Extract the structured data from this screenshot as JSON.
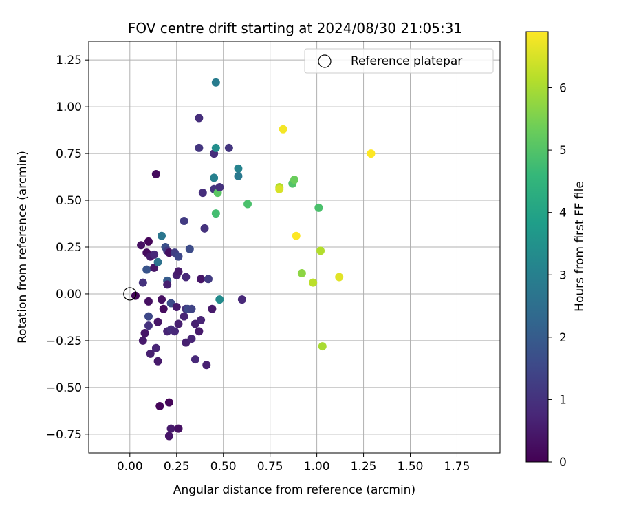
{
  "chart_data": {
    "type": "scatter",
    "title": "FOV centre drift starting at 2024/08/30 21:05:31",
    "xlabel": "Angular distance from reference (arcmin)",
    "ylabel": "Rotation from reference (arcmin)",
    "xlim": [
      -0.22,
      1.98
    ],
    "ylim": [
      -0.85,
      1.35
    ],
    "xticks": [
      "0.00",
      "0.25",
      "0.50",
      "0.75",
      "1.00",
      "1.25",
      "1.50",
      "1.75"
    ],
    "xtick_values": [
      0,
      0.25,
      0.5,
      0.75,
      1.0,
      1.25,
      1.5,
      1.75
    ],
    "yticks": [
      "−0.75",
      "−0.50",
      "−0.25",
      "0.00",
      "0.25",
      "0.50",
      "0.75",
      "1.00",
      "1.25"
    ],
    "ytick_values": [
      -0.75,
      -0.5,
      -0.25,
      0,
      0.25,
      0.5,
      0.75,
      1.0,
      1.25
    ],
    "grid": true,
    "legend": {
      "position": "top-right",
      "entries": [
        "Reference platepar"
      ]
    },
    "reference_point": {
      "x": 0,
      "y": 0
    },
    "colorbar": {
      "label": "Hours from first FF file",
      "range": [
        0,
        6.9
      ],
      "ticks": [
        "0",
        "1",
        "2",
        "3",
        "4",
        "5",
        "6"
      ],
      "tick_values": [
        0,
        1,
        2,
        3,
        4,
        5,
        6
      ],
      "colormap": "viridis",
      "stops": [
        "#440154",
        "#482878",
        "#3e4989",
        "#31688e",
        "#26828e",
        "#1f9e89",
        "#35b779",
        "#6ece58",
        "#b5de2b",
        "#fde725"
      ]
    },
    "points": [
      {
        "x": 0.03,
        "y": -0.01,
        "t": 0.1
      },
      {
        "x": 0.06,
        "y": 0.26,
        "t": 0.3
      },
      {
        "x": 0.07,
        "y": 0.06,
        "t": 1.0
      },
      {
        "x": 0.07,
        "y": -0.25,
        "t": 0.5
      },
      {
        "x": 0.08,
        "y": -0.21,
        "t": 0.4
      },
      {
        "x": 0.09,
        "y": 0.22,
        "t": 0.2
      },
      {
        "x": 0.09,
        "y": 0.13,
        "t": 1.8
      },
      {
        "x": 0.1,
        "y": 0.28,
        "t": 0.1
      },
      {
        "x": 0.1,
        "y": -0.12,
        "t": 1.5
      },
      {
        "x": 0.1,
        "y": -0.17,
        "t": 1.0
      },
      {
        "x": 0.1,
        "y": -0.04,
        "t": 0.3
      },
      {
        "x": 0.11,
        "y": 0.2,
        "t": 0.5
      },
      {
        "x": 0.11,
        "y": -0.32,
        "t": 0.6
      },
      {
        "x": 0.13,
        "y": 0.21,
        "t": 0.8
      },
      {
        "x": 0.13,
        "y": 0.14,
        "t": 0.4
      },
      {
        "x": 0.14,
        "y": 0.64,
        "t": 0.2
      },
      {
        "x": 0.14,
        "y": -0.29,
        "t": 0.7
      },
      {
        "x": 0.15,
        "y": -0.15,
        "t": 0.4
      },
      {
        "x": 0.15,
        "y": -0.36,
        "t": 0.5
      },
      {
        "x": 0.15,
        "y": 0.17,
        "t": 2.6
      },
      {
        "x": 0.16,
        "y": -0.6,
        "t": 0.1
      },
      {
        "x": 0.17,
        "y": -0.03,
        "t": 0.3
      },
      {
        "x": 0.17,
        "y": 0.31,
        "t": 2.7
      },
      {
        "x": 0.18,
        "y": -0.08,
        "t": 0.2
      },
      {
        "x": 0.19,
        "y": 0.25,
        "t": 1.7
      },
      {
        "x": 0.2,
        "y": 0.23,
        "t": 1.2
      },
      {
        "x": 0.2,
        "y": 0.07,
        "t": 2.0
      },
      {
        "x": 0.2,
        "y": 0.05,
        "t": 0.6
      },
      {
        "x": 0.2,
        "y": -0.2,
        "t": 0.7
      },
      {
        "x": 0.21,
        "y": 0.22,
        "t": 0.3
      },
      {
        "x": 0.21,
        "y": -0.76,
        "t": 0.4
      },
      {
        "x": 0.21,
        "y": -0.58,
        "t": 0.1
      },
      {
        "x": 0.22,
        "y": -0.05,
        "t": 1.6
      },
      {
        "x": 0.22,
        "y": -0.19,
        "t": 0.9
      },
      {
        "x": 0.22,
        "y": -0.72,
        "t": 0.5
      },
      {
        "x": 0.24,
        "y": -0.2,
        "t": 0.8
      },
      {
        "x": 0.24,
        "y": 0.22,
        "t": 1.3
      },
      {
        "x": 0.25,
        "y": -0.07,
        "t": 0.5
      },
      {
        "x": 0.25,
        "y": 0.1,
        "t": 0.6
      },
      {
        "x": 0.26,
        "y": -0.72,
        "t": 0.3
      },
      {
        "x": 0.26,
        "y": -0.16,
        "t": 0.6
      },
      {
        "x": 0.26,
        "y": 0.12,
        "t": 0.5
      },
      {
        "x": 0.26,
        "y": 0.2,
        "t": 1.5
      },
      {
        "x": 0.29,
        "y": 0.39,
        "t": 1.2
      },
      {
        "x": 0.29,
        "y": -0.12,
        "t": 0.7
      },
      {
        "x": 0.3,
        "y": -0.08,
        "t": 1.0
      },
      {
        "x": 0.3,
        "y": 0.09,
        "t": 0.8
      },
      {
        "x": 0.3,
        "y": -0.26,
        "t": 0.6
      },
      {
        "x": 0.31,
        "y": -0.08,
        "t": 1.5
      },
      {
        "x": 0.32,
        "y": 0.24,
        "t": 1.6
      },
      {
        "x": 0.33,
        "y": -0.08,
        "t": 1.4
      },
      {
        "x": 0.33,
        "y": -0.24,
        "t": 0.7
      },
      {
        "x": 0.35,
        "y": -0.35,
        "t": 0.8
      },
      {
        "x": 0.35,
        "y": -0.16,
        "t": 0.6
      },
      {
        "x": 0.37,
        "y": -0.2,
        "t": 0.5
      },
      {
        "x": 0.37,
        "y": 0.94,
        "t": 0.9
      },
      {
        "x": 0.37,
        "y": 0.78,
        "t": 1.1
      },
      {
        "x": 0.38,
        "y": -0.14,
        "t": 0.7
      },
      {
        "x": 0.38,
        "y": 0.08,
        "t": 0.4
      },
      {
        "x": 0.39,
        "y": 0.54,
        "t": 0.9
      },
      {
        "x": 0.4,
        "y": 0.35,
        "t": 1.0
      },
      {
        "x": 0.41,
        "y": -0.38,
        "t": 0.6
      },
      {
        "x": 0.42,
        "y": 0.08,
        "t": 1.2
      },
      {
        "x": 0.44,
        "y": -0.08,
        "t": 0.5
      },
      {
        "x": 0.45,
        "y": 0.62,
        "t": 3.0
      },
      {
        "x": 0.45,
        "y": 0.56,
        "t": 1.1
      },
      {
        "x": 0.45,
        "y": 0.75,
        "t": 0.9
      },
      {
        "x": 0.46,
        "y": 1.13,
        "t": 2.9
      },
      {
        "x": 0.46,
        "y": 0.78,
        "t": 3.4
      },
      {
        "x": 0.46,
        "y": 0.43,
        "t": 4.8
      },
      {
        "x": 0.47,
        "y": 0.54,
        "t": 5.1
      },
      {
        "x": 0.48,
        "y": -0.03,
        "t": 3.3
      },
      {
        "x": 0.48,
        "y": 0.57,
        "t": 1.0
      },
      {
        "x": 0.53,
        "y": 0.78,
        "t": 1.1
      },
      {
        "x": 0.58,
        "y": 0.67,
        "t": 3.1
      },
      {
        "x": 0.58,
        "y": 0.63,
        "t": 2.8
      },
      {
        "x": 0.6,
        "y": -0.03,
        "t": 0.8
      },
      {
        "x": 0.63,
        "y": 0.48,
        "t": 4.9
      },
      {
        "x": 0.8,
        "y": 0.57,
        "t": 6.1
      },
      {
        "x": 0.8,
        "y": 0.56,
        "t": 6.5
      },
      {
        "x": 0.82,
        "y": 0.88,
        "t": 6.8
      },
      {
        "x": 0.87,
        "y": 0.59,
        "t": 5.0
      },
      {
        "x": 0.88,
        "y": 0.61,
        "t": 5.3
      },
      {
        "x": 0.89,
        "y": 0.31,
        "t": 6.9
      },
      {
        "x": 0.92,
        "y": 0.11,
        "t": 5.7
      },
      {
        "x": 0.98,
        "y": 0.06,
        "t": 6.2
      },
      {
        "x": 1.01,
        "y": 0.46,
        "t": 4.9
      },
      {
        "x": 1.02,
        "y": 0.23,
        "t": 6.1
      },
      {
        "x": 1.03,
        "y": -0.28,
        "t": 6.0
      },
      {
        "x": 1.12,
        "y": 0.09,
        "t": 6.6
      },
      {
        "x": 1.29,
        "y": 0.75,
        "t": 6.9
      }
    ]
  }
}
